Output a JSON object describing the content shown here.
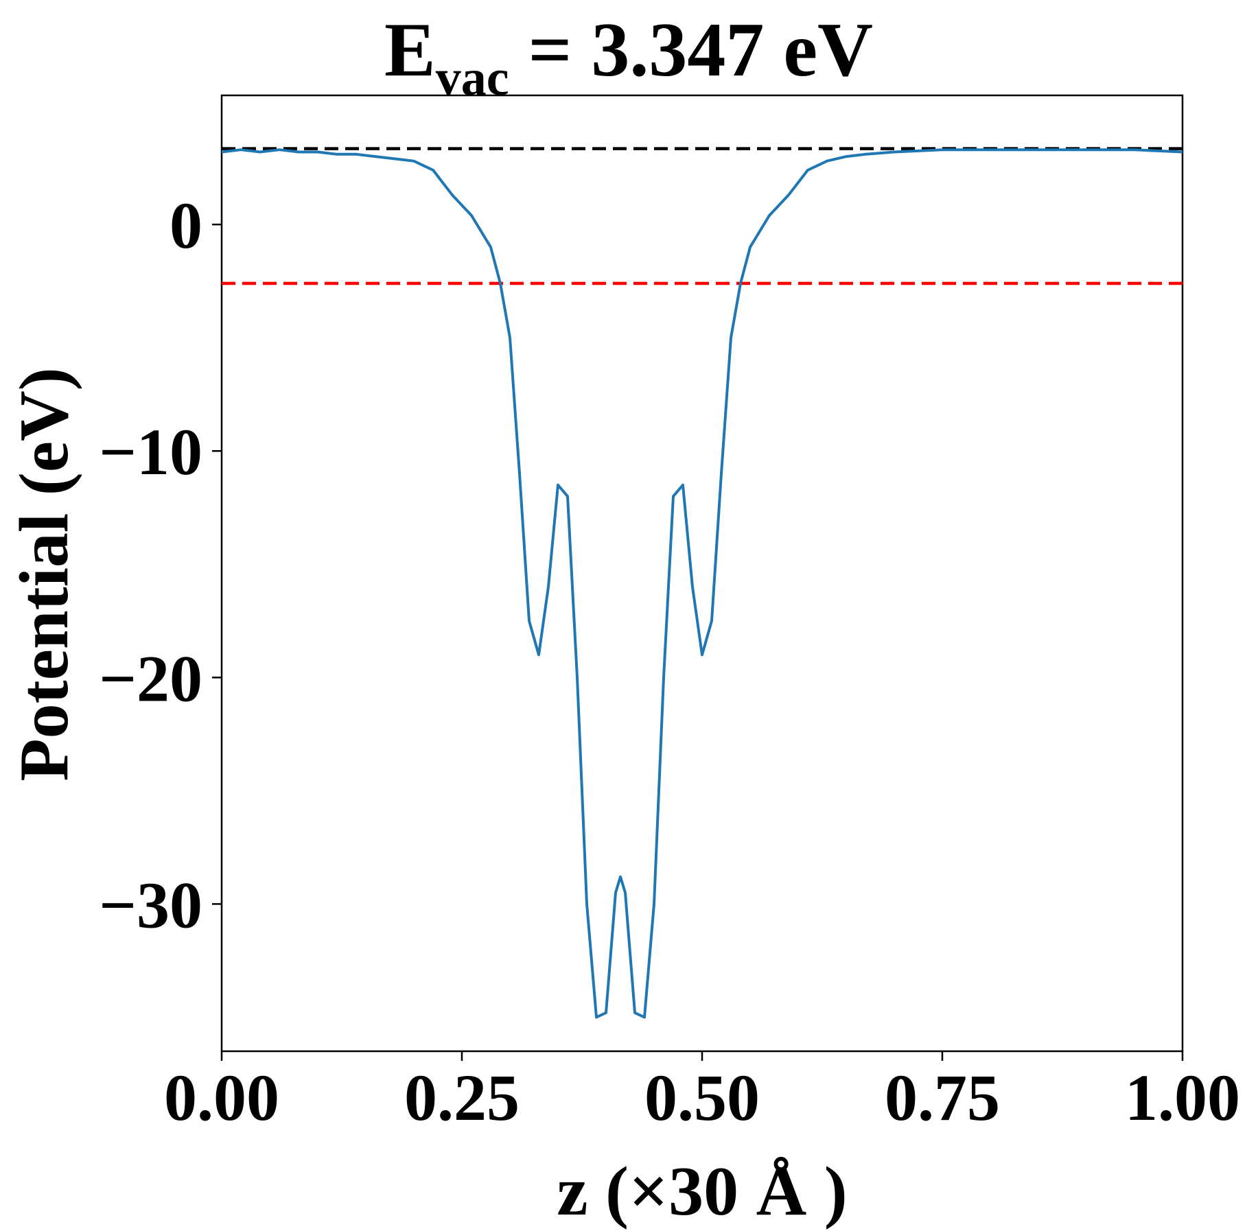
{
  "chart_data": {
    "type": "line",
    "title": {
      "main": "E",
      "subscript": "vac",
      "rest": " = 3.347 eV"
    },
    "xlabel": "z (×30 Å )",
    "ylabel": "Potential (eV)",
    "xlim": [
      0.0,
      1.0
    ],
    "ylim": [
      -36.5,
      5.7
    ],
    "x_ticks": [
      0.0,
      0.25,
      0.5,
      0.75,
      1.0
    ],
    "x_tick_labels": [
      "0.00",
      "0.25",
      "0.50",
      "0.75",
      "1.00"
    ],
    "y_ticks": [
      0,
      -10,
      -20,
      -30
    ],
    "y_tick_labels": [
      "0",
      "−10",
      "−20",
      "−30"
    ],
    "grid": false,
    "reference_lines": [
      {
        "y": 3.347,
        "color": "#000000",
        "style": "dashed"
      },
      {
        "y": -2.6,
        "color": "#ff0000",
        "style": "dashed"
      }
    ],
    "series": [
      {
        "color": "#1f77b4",
        "x": [
          0.0,
          0.02,
          0.04,
          0.06,
          0.08,
          0.1,
          0.12,
          0.14,
          0.16,
          0.18,
          0.2,
          0.22,
          0.24,
          0.26,
          0.28,
          0.29,
          0.3,
          0.31,
          0.32,
          0.33,
          0.34,
          0.35,
          0.36,
          0.37,
          0.38,
          0.39,
          0.4,
          0.41,
          0.415,
          0.42,
          0.43,
          0.44,
          0.45,
          0.46,
          0.47,
          0.48,
          0.49,
          0.5,
          0.51,
          0.52,
          0.53,
          0.54,
          0.55,
          0.57,
          0.59,
          0.61,
          0.63,
          0.65,
          0.67,
          0.7,
          0.75,
          0.8,
          0.85,
          0.9,
          0.95,
          1.0
        ],
        "y": [
          3.2,
          3.3,
          3.2,
          3.3,
          3.2,
          3.2,
          3.1,
          3.1,
          3.0,
          2.9,
          2.8,
          2.4,
          1.3,
          0.4,
          -1.0,
          -2.6,
          -5.0,
          -11.0,
          -17.5,
          -19.0,
          -16.0,
          -11.5,
          -12.0,
          -20.0,
          -30.0,
          -35.0,
          -34.8,
          -29.5,
          -28.8,
          -29.5,
          -34.8,
          -35.0,
          -30.0,
          -20.0,
          -12.0,
          -11.5,
          -16.0,
          -19.0,
          -17.5,
          -11.0,
          -5.0,
          -2.6,
          -1.0,
          0.4,
          1.3,
          2.4,
          2.8,
          3.0,
          3.1,
          3.2,
          3.3,
          3.3,
          3.3,
          3.3,
          3.3,
          3.2
        ]
      }
    ]
  }
}
